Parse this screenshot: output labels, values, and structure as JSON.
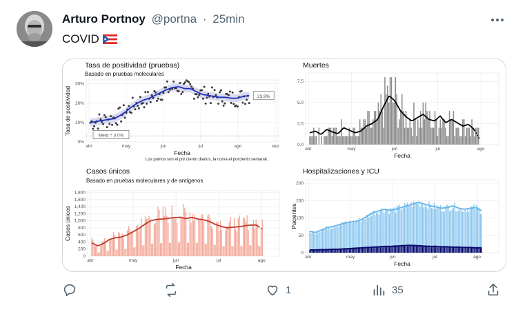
{
  "post": {
    "author_name": "Arturo Portnoy",
    "handle": "@portna",
    "separator": "·",
    "time": "25min",
    "text": "COVID",
    "flag": "puerto-rico-flag"
  },
  "actions": {
    "reply_count": "",
    "repost_count": "",
    "like_count": "1",
    "views_count": "35"
  },
  "colors": {
    "positivity_line": "#1f2ebd",
    "positivity_points": "#3a3a3a",
    "deaths_bars": "#8c8c8c",
    "cases_bars": "#f4a99a",
    "cases_line": "#c0392b",
    "hosp_bars": "#8ec8ef",
    "hosp_line": "#6bb7ea",
    "icu_bars": "#0a0a6e",
    "icu_line": "#0a0a6e"
  },
  "chart_data": [
    {
      "type": "scatter",
      "title": "Tasa de positividad (pruebas)",
      "subtitle": "Basado en pruebas moleculares",
      "xlabel": "Fecha",
      "ylabel": "Tasa de positividad",
      "x_ticks": [
        "abr",
        "may",
        "jun",
        "jul",
        "ago",
        "sep"
      ],
      "y_ticks": [
        "0%",
        "10%",
        "20%",
        "30%"
      ],
      "ylim": [
        0,
        32
      ],
      "annotation_last": "23.9%",
      "annotation_goal": "Meta = 3.0%",
      "goal": 3.0,
      "footnote": "Los puntos son el por ciento diarios, la curva el porciento semanal.",
      "weekly": [
        10,
        10.5,
        11,
        11.5,
        12,
        13.5,
        15.5,
        18,
        20,
        21.5,
        22.5,
        24,
        25.5,
        27,
        28,
        28.5,
        27.5,
        27.5,
        26,
        24.5,
        24,
        23.5,
        23,
        23,
        22.5,
        22.5,
        23.5,
        23.9
      ],
      "daily_spread": 4.5
    },
    {
      "type": "bar",
      "title": "Muertes",
      "xlabel": "Fecha",
      "ylabel": "",
      "x_ticks": [
        "abr",
        "may",
        "jun",
        "jul",
        "ago"
      ],
      "y_ticks": [
        "0.0",
        "2.5",
        "5.0",
        "7.5"
      ],
      "ylim": [
        0,
        8.5
      ],
      "weekly": [
        1.4,
        1.6,
        1.2,
        1.8,
        1.5,
        1.3,
        2.0,
        1.7,
        1.4,
        1.6,
        2.2,
        2.5,
        3.0,
        4.5,
        5.8,
        5.2,
        4.0,
        3.3,
        2.8,
        3.2,
        3.6,
        3.0,
        2.8,
        3.4,
        2.6,
        3.0,
        2.6,
        2.2,
        2.4,
        1.8,
        0.6
      ]
    },
    {
      "type": "bar",
      "title": "Casos únicos",
      "subtitle": "Basado en pruebas moleculares y de antígenos",
      "xlabel": "Fecha",
      "ylabel": "Casos únicos",
      "x_ticks": [
        "abr",
        "may",
        "jun",
        "jul",
        "ago"
      ],
      "y_ticks": [
        "0",
        "200",
        "400",
        "600",
        "800",
        "1,000",
        "1,200",
        "1,400",
        "1,600",
        "1,800"
      ],
      "ylim": [
        0,
        1850
      ],
      "weekly": [
        380,
        290,
        360,
        470,
        520,
        540,
        600,
        690,
        780,
        900,
        1000,
        1040,
        1050,
        1070,
        1090,
        1100,
        1060,
        1100,
        1050,
        1030,
        980,
        900,
        840,
        800,
        820,
        830,
        860,
        880,
        880,
        760
      ]
    },
    {
      "type": "bar",
      "title": "Hospitalizaciones y ICU",
      "xlabel": "Fecha",
      "ylabel": "Pacientes",
      "x_ticks": [
        "abr",
        "may",
        "jun",
        "jul",
        "ago"
      ],
      "y_ticks": [
        "0",
        "50",
        "100",
        "150",
        "200"
      ],
      "ylim": [
        0,
        210
      ],
      "series": [
        {
          "name": "",
          "values": [
            62,
            58,
            65,
            72,
            75,
            80,
            85,
            88,
            90,
            95,
            105,
            115,
            120,
            125,
            122,
            125,
            130,
            135,
            140,
            145,
            140,
            135,
            132,
            128,
            130,
            135,
            128,
            125,
            128,
            130,
            120
          ]
        },
        {
          "name": "",
          "values": [
            8,
            8,
            9,
            9,
            10,
            10,
            11,
            12,
            13,
            14,
            15,
            16,
            17,
            18,
            18,
            19,
            20,
            21,
            21,
            20,
            19,
            18,
            18,
            17,
            17,
            16,
            16,
            15,
            15,
            14,
            14
          ]
        }
      ]
    }
  ]
}
